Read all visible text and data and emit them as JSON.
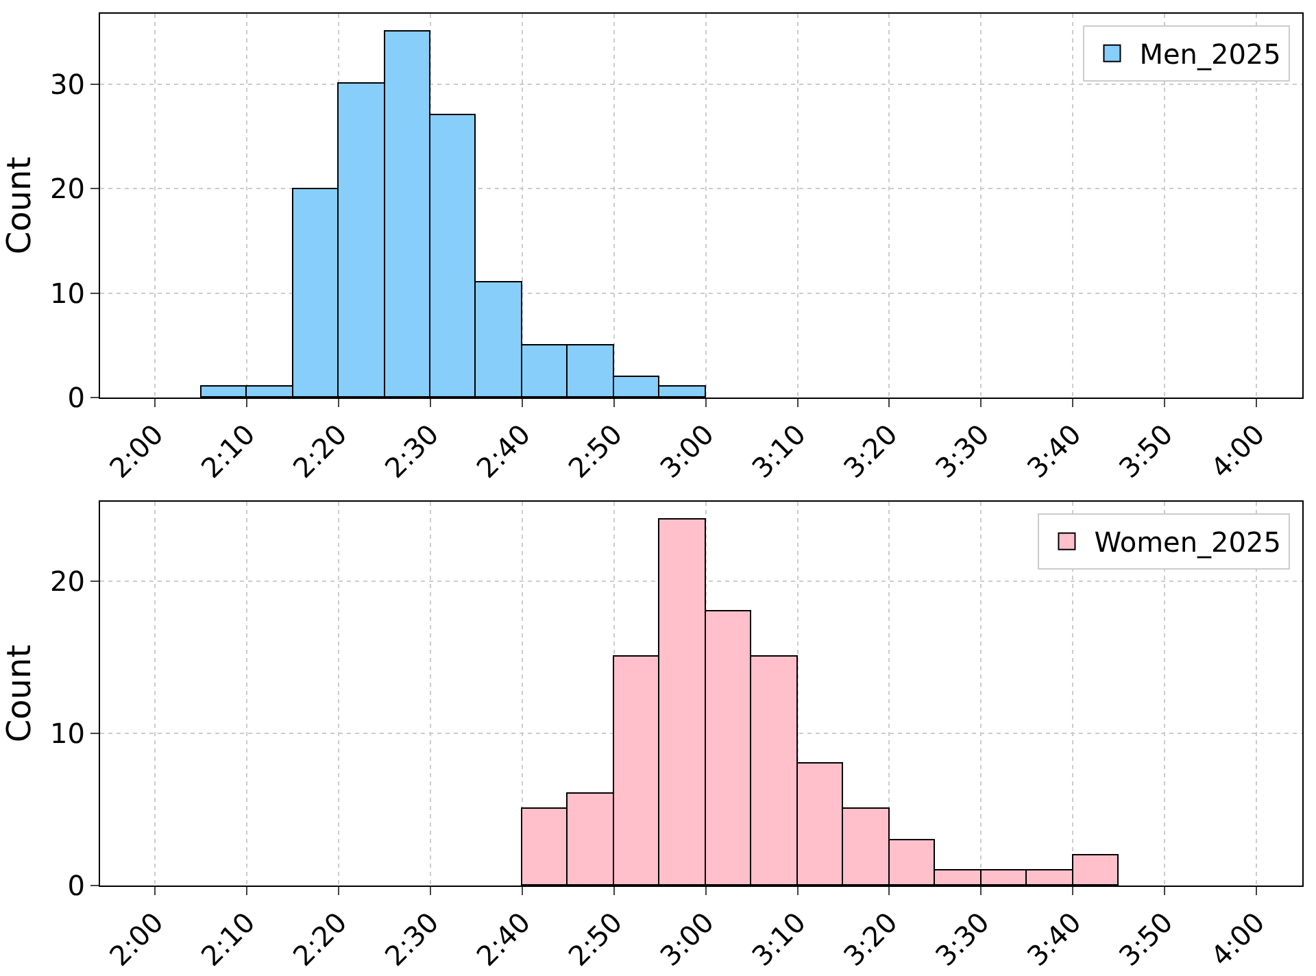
{
  "chart_data": [
    {
      "type": "histogram",
      "ylabel": "Count",
      "bins": [
        125,
        130,
        135,
        140,
        145,
        150,
        155,
        160,
        165,
        170,
        175,
        180
      ],
      "series": [
        {
          "name": "Men_2025",
          "color": "#87cefa",
          "values": [
            1,
            1,
            20,
            30,
            35,
            27,
            11,
            5,
            5,
            2,
            1
          ]
        }
      ],
      "xlim": [
        114,
        245
      ],
      "xticks": [
        {
          "value": 120,
          "label": "2:00"
        },
        {
          "value": 130,
          "label": "2:10"
        },
        {
          "value": 140,
          "label": "2:20"
        },
        {
          "value": 150,
          "label": "2:30"
        },
        {
          "value": 160,
          "label": "2:40"
        },
        {
          "value": 170,
          "label": "2:50"
        },
        {
          "value": 180,
          "label": "3:00"
        },
        {
          "value": 190,
          "label": "3:10"
        },
        {
          "value": 200,
          "label": "3:20"
        },
        {
          "value": 210,
          "label": "3:30"
        },
        {
          "value": 220,
          "label": "3:40"
        },
        {
          "value": 230,
          "label": "3:50"
        },
        {
          "value": 240,
          "label": "4:00"
        }
      ],
      "ylim": [
        0,
        36.75
      ],
      "yticks": [
        0,
        10,
        20,
        30
      ],
      "grid": true,
      "legend": "top right"
    },
    {
      "type": "histogram",
      "ylabel": "Count",
      "bins": [
        160,
        165,
        170,
        175,
        180,
        185,
        190,
        195,
        200,
        205,
        210,
        215,
        220,
        225
      ],
      "series": [
        {
          "name": "Women_2025",
          "color": "#ffc0cb",
          "values": [
            5,
            6,
            15,
            24,
            18,
            15,
            8,
            5,
            3,
            1,
            1,
            1,
            2
          ]
        }
      ],
      "xlim": [
        114,
        245
      ],
      "xticks": [
        {
          "value": 120,
          "label": "2:00"
        },
        {
          "value": 130,
          "label": "2:10"
        },
        {
          "value": 140,
          "label": "2:20"
        },
        {
          "value": 150,
          "label": "2:30"
        },
        {
          "value": 160,
          "label": "2:40"
        },
        {
          "value": 170,
          "label": "2:50"
        },
        {
          "value": 180,
          "label": "3:00"
        },
        {
          "value": 190,
          "label": "3:10"
        },
        {
          "value": 200,
          "label": "3:20"
        },
        {
          "value": 210,
          "label": "3:30"
        },
        {
          "value": 220,
          "label": "3:40"
        },
        {
          "value": 230,
          "label": "3:50"
        },
        {
          "value": 240,
          "label": "4:00"
        }
      ],
      "ylim": [
        0,
        25.2
      ],
      "yticks": [
        0,
        10,
        20
      ],
      "grid": true,
      "legend": "top right"
    }
  ]
}
